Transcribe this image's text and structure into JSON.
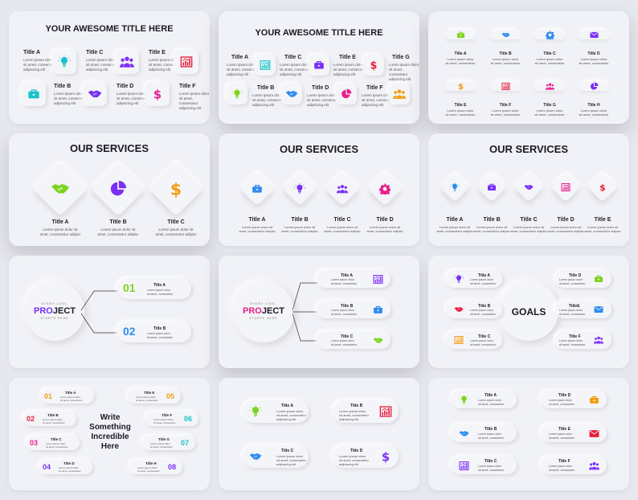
{
  "lorem": {
    "l1": "Lorem ipsum dolor",
    "l2": "sit amet, consectetur",
    "l3": "adipiscing elit",
    "short1": "Lorem ipsum dolor sit",
    "short2": "amet, consectetur adipisc"
  },
  "p1": {
    "title": "YOUR AWESOME TITLE HERE",
    "items": [
      "Title A",
      "Title B",
      "Title C",
      "Title D",
      "Title E",
      "Title F"
    ]
  },
  "p2": {
    "title": "YOUR AWESOME TITLE HERE",
    "items": [
      "Title A",
      "Title B",
      "Title C",
      "Title D",
      "Title E",
      "Title F",
      "Title G"
    ]
  },
  "p3": {
    "items": [
      "Title A",
      "Title B",
      "Title C",
      "Title D",
      "Title E",
      "Title F",
      "Title G",
      "Title H"
    ]
  },
  "p4": {
    "title": "OUR SERVICES",
    "items": [
      "Title A",
      "Title B",
      "Title C"
    ]
  },
  "p5": {
    "title": "OUR SERVICES",
    "items": [
      "Title A",
      "Title B",
      "Title C",
      "Title D"
    ]
  },
  "p6": {
    "title": "OUR SERVICES",
    "items": [
      "Title A",
      "Title B",
      "Title C",
      "Title D",
      "Title E"
    ]
  },
  "p7": {
    "top": "EVERY COOL",
    "main": "PROJECT",
    "pro": "PRO",
    "ject": "JECT",
    "bottom": "STARTS HERE",
    "n1": "01",
    "n2": "02",
    "items": [
      "Title A",
      "Title B"
    ]
  },
  "p8": {
    "top": "EVERY COOL",
    "pro": "PRO",
    "ject": "JECT",
    "bottom": "STARTS HERE",
    "items": [
      "Title A",
      "Title B",
      "Title C"
    ]
  },
  "p9": {
    "center": "GOALS",
    "items": [
      "Title A",
      "Title B",
      "Title C",
      "Title D",
      "TitleE",
      "Title F"
    ]
  },
  "p10": {
    "center": [
      "Write",
      "Something",
      "Incredible",
      "Here"
    ],
    "nums": [
      "01",
      "02",
      "03",
      "04",
      "05",
      "06",
      "07",
      "08"
    ],
    "items": [
      "Title A",
      "Title B",
      "Title C",
      "Title D",
      "Title E",
      "Title F",
      "Title G",
      "Title H"
    ]
  },
  "p11": {
    "items": [
      "Title A",
      "Title B",
      "Title C",
      "Title D"
    ]
  },
  "p12": {
    "items": [
      "Title A",
      "Title B",
      "Title C",
      "Title D",
      "Title E",
      "Title F"
    ]
  },
  "colors": {
    "teal": "#17c3c9",
    "orange": "#f39c12",
    "purple": "#7b2ff7",
    "magenta": "#e91e8c",
    "red": "#e91e3c",
    "green": "#7ed321",
    "blue": "#2f8cf0",
    "bg": "#f1f2f7"
  },
  "icons": [
    "lightbulb-icon",
    "briefcase-icon",
    "handshake-icon",
    "team-icon",
    "pie-chart-icon",
    "dollar-icon",
    "bar-chart-icon",
    "gear-icon",
    "mail-icon"
  ]
}
